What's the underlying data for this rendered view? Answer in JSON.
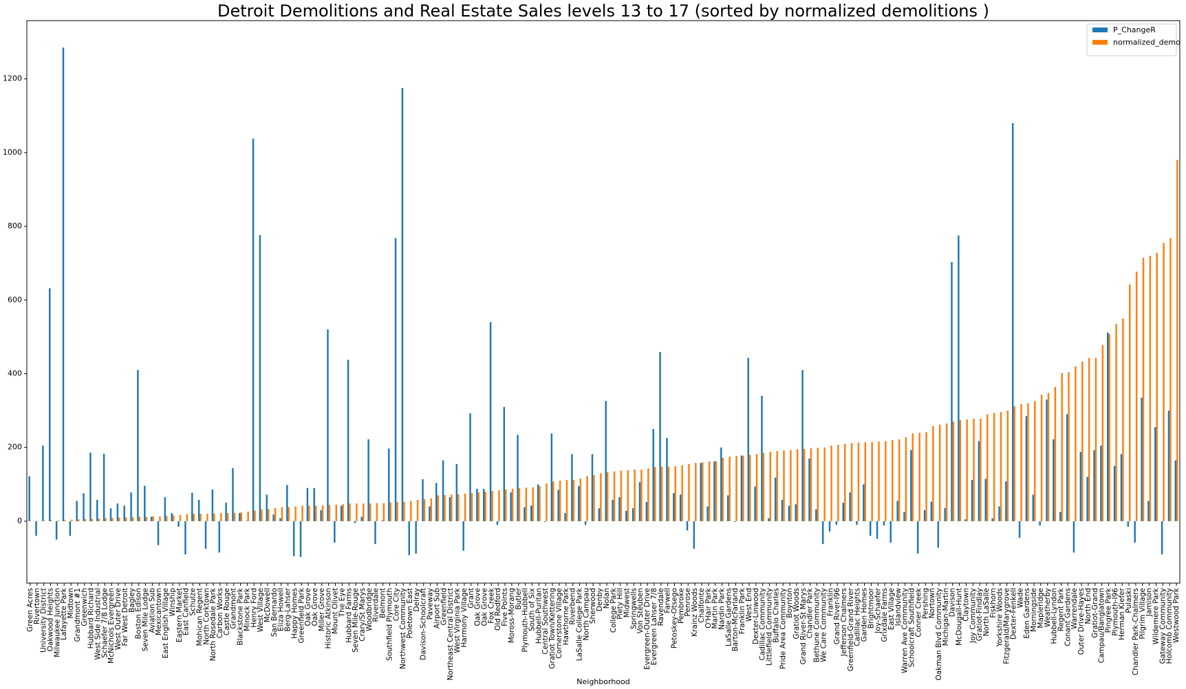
{
  "chart_data": {
    "type": "bar",
    "title": "Detroit Demolitions and Real Estate Sales levels 13 to 17 (sorted by normalized demolitions )",
    "xlabel": "Neighborhood",
    "legend": "upper right",
    "categories": [
      "Green Acres",
      "Rivertown",
      "University District",
      "Oakwood Heights",
      "Milwaukee Junction",
      "Lafayette Park",
      "Midtown",
      "Grandmont #1",
      "Greenwich",
      "Hubbard Richard",
      "West Side Industrial",
      "Schaefer 7/8 Lodge",
      "McNichols Evergreen",
      "West Outer Drive",
      "Far West Detroit",
      "Bagley",
      "Boston Edison",
      "Seven Mile Lodge",
      "Aviation Sub",
      "Mexicantown",
      "East English Village",
      "Winship",
      "Eastern Market",
      "East Canfield",
      "Schulze",
      "Mohican Regent",
      "North Corktown",
      "North Rosedale Park",
      "Carbon Works",
      "Castle Rouge",
      "Grandmont",
      "Blackstone Park",
      "Minock Park",
      "Henry Ford",
      "West Village",
      "McDowell",
      "San Bernardo",
      "Eliza Howell",
      "Berg-Lahser",
      "Happy Homes",
      "Greenfield Park",
      "Oak Grove",
      "Oak Grove",
      "Miller Grove",
      "Historic Atkinson",
      "Mount Olivet",
      "The Eye",
      "Hubbard Farms",
      "Seven Mile-Rouge",
      "Crary/St Marys",
      "Woodbridge",
      "Riverdale",
      "Belmont",
      "Southfield Plymouth",
      "Core City",
      "Northwest Community",
      "Poletown East",
      "Delray",
      "Davison-Schoolcraft",
      "Paveway",
      "Airport Sub",
      "Greenfield",
      "Northeast Central District",
      "West Virginia Park",
      "Harmony Village",
      "Grant",
      "Oak Grove",
      "Oak Grove",
      "Fox Creek",
      "Old Redford",
      "Five Points",
      "Moross-Morang",
      "Butler",
      "Plymouth-Hubbell",
      "South of Six",
      "Hubbell-Puritan",
      "Central Southwest",
      "Gratiot Town/Kettering",
      "Cornerstone Village",
      "Hawthorne Park",
      "Riverbend",
      "LaSalle College Park",
      "North Campau",
      "Sherwood",
      "Denby",
      "Nolan",
      "College Park",
      "Piety Hill",
      "Midwest",
      "Springwells",
      "Von Steuben",
      "Evergreen-Outer Drive",
      "Evergreen Lahser 7/8",
      "Ravendale",
      "Farwell",
      "Petoskey-Otsego",
      "Pembroke",
      "Penrose",
      "Krainz Woods",
      "Chalfonte",
      "O'Hair Park",
      "Martin Park",
      "Nardin Park",
      "LaSalle Gardens",
      "Barton-McFarland",
      "Franklin Park",
      "West End",
      "Dexter-Linwood",
      "Cadillac Community",
      "Littlefield Community",
      "Buffalo Charles",
      "Pride Area Community",
      "Boynton",
      "Gratiot Woods",
      "Grand River-St Marys",
      "Chandler Park",
      "Bethune Community",
      "We Care Community",
      "Franklin",
      "Grand River-I96",
      "Jefferson Chalmers",
      "Greenfield-Grand River",
      "Cadillac Heights",
      "Garden Homes",
      "Brightmoor",
      "Joy-Schaefer",
      "Grixdale Farms",
      "East Village",
      "Islandview",
      "Warren Ave Community",
      "Schoolcraft Southfield",
      "Conner Creek",
      "Pershing",
      "Nortown",
      "Oakman Blvd Community",
      "Michigan-Martin",
      "Davison",
      "McDougall-Hunt",
      "Claytown",
      "Joy Community",
      "Gratiot-Findlay",
      "North LaSalle",
      "Fiskhorn",
      "Yorkshire Woods",
      "Fitzgerald/Marygrove",
      "Dexter-Fenkell",
      "Wade",
      "Eden Gardens",
      "Morningside",
      "Mapleridge",
      "Weatherby",
      "Hubbell-Lyndon",
      "Regent Park",
      "Conant Gardens",
      "Warrendale",
      "Outer Drive-Hayes",
      "North End",
      "Gratiot-Grand",
      "Campau/Banglatown",
      "Pingree Park",
      "Plymouth-I96",
      "Herman Kiefer",
      "Pulaski",
      "Chandler Park-Chalmers",
      "Pilgrim Village",
      "Jamison",
      "Wildemere Park",
      "Gateway Community",
      "Holcomb Community",
      "Westwood Park"
    ],
    "series": [
      {
        "name": "P_ChangeR",
        "color": "#1f77b4",
        "values": [
          122,
          -40,
          205,
          632,
          -50,
          1285,
          -40,
          55,
          76,
          186,
          58,
          183,
          35,
          48,
          42,
          78,
          410,
          96,
          12,
          -65,
          65,
          22,
          -15,
          -90,
          77,
          58,
          -75,
          86,
          -85,
          50,
          144,
          22,
          1,
          1038,
          776,
          72,
          18,
          8,
          98,
          -95,
          -97,
          90,
          90,
          30,
          520,
          -58,
          42,
          438,
          -5,
          12,
          222,
          -62,
          2,
          197,
          768,
          1175,
          -92,
          -88,
          114,
          40,
          104,
          165,
          65,
          155,
          -80,
          293,
          88,
          88,
          540,
          -10,
          310,
          78,
          234,
          38,
          42,
          100,
          -2,
          238,
          85,
          22,
          182,
          95,
          -10,
          182,
          35,
          326,
          58,
          65,
          28,
          35,
          106,
          52,
          250,
          459,
          226,
          76,
          72,
          -25,
          -75,
          158,
          40,
          162,
          200,
          70,
          -2,
          178,
          443,
          94,
          340,
          8,
          118,
          58,
          42,
          46,
          410,
          170,
          32,
          -62,
          -28,
          -10,
          50,
          78,
          -10,
          100,
          -40,
          -48,
          -12,
          -58,
          55,
          25,
          193,
          -88,
          30,
          53,
          -72,
          36,
          703,
          775,
          5,
          112,
          217,
          115,
          8,
          40,
          108,
          1080,
          -45,
          285,
          72,
          -12,
          330,
          222,
          25,
          290,
          -85,
          188,
          120,
          193,
          205,
          512,
          150,
          182,
          -15,
          -58,
          335,
          55,
          255,
          -90,
          300,
          165
        ]
      },
      {
        "name": "normalized_demo",
        "color": "#ff7f0e",
        "values": [
          0,
          1,
          1,
          2,
          2,
          3,
          4,
          5,
          6,
          6,
          7,
          8,
          9,
          10,
          10,
          11,
          12,
          12,
          13,
          13,
          14,
          16,
          17,
          19,
          20,
          20,
          20,
          21,
          22,
          22,
          23,
          24,
          26,
          29,
          32,
          33,
          36,
          38,
          38,
          40,
          42,
          42,
          42,
          43,
          44,
          45,
          46,
          48,
          48,
          48,
          48,
          49,
          49,
          51,
          52,
          53,
          55,
          58,
          60,
          62,
          70,
          71,
          72,
          73,
          75,
          76,
          78,
          80,
          82,
          84,
          86,
          88,
          90,
          91,
          92,
          95,
          102,
          108,
          110,
          112,
          112,
          116,
          122,
          125,
          130,
          133,
          135,
          137,
          138,
          140,
          140,
          143,
          147,
          148,
          148,
          149,
          152,
          155,
          158,
          160,
          162,
          163,
          172,
          175,
          177,
          178,
          180,
          182,
          185,
          188,
          190,
          192,
          193,
          195,
          196,
          198,
          199,
          200,
          205,
          207,
          210,
          212,
          213,
          214,
          215,
          216,
          217,
          220,
          222,
          228,
          238,
          240,
          242,
          258,
          262,
          265,
          270,
          274,
          276,
          278,
          278,
          290,
          294,
          296,
          300,
          312,
          318,
          320,
          326,
          343,
          348,
          364,
          402,
          404,
          420,
          433,
          443,
          443,
          478,
          508,
          535,
          550,
          642,
          677,
          715,
          720,
          728,
          755,
          768,
          980
        ]
      }
    ],
    "ylim": [
      -168,
      1358
    ],
    "yticks": [
      0,
      200,
      400,
      600,
      800,
      1000,
      1200
    ]
  }
}
